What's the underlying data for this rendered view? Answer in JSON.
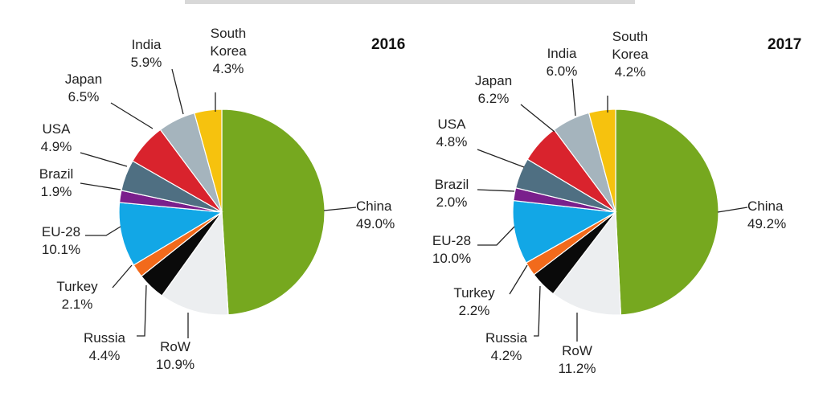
{
  "chart_data": [
    {
      "type": "pie",
      "title": "2016",
      "slices": [
        {
          "label": "China",
          "value": 49.0,
          "pct": "49.0%",
          "color": "#76a81f"
        },
        {
          "label": "RoW",
          "value": 10.9,
          "pct": "10.9%",
          "color": "#eceef0"
        },
        {
          "label": "Russia",
          "value": 4.4,
          "pct": "4.4%",
          "color": "#0a0a0a"
        },
        {
          "label": "Turkey",
          "value": 2.1,
          "pct": "2.1%",
          "color": "#f26a1b"
        },
        {
          "label": "EU-28",
          "value": 10.1,
          "pct": "10.1%",
          "color": "#12a7e6"
        },
        {
          "label": "Brazil",
          "value": 1.9,
          "pct": "1.9%",
          "color": "#7a1f8c"
        },
        {
          "label": "USA",
          "value": 4.9,
          "pct": "4.9%",
          "color": "#4f6f82"
        },
        {
          "label": "Japan",
          "value": 6.5,
          "pct": "6.5%",
          "color": "#d9232d"
        },
        {
          "label": "India",
          "value": 5.9,
          "pct": "5.9%",
          "color": "#a5b4bd"
        },
        {
          "label": "South Korea",
          "label_lines": [
            "South",
            "Korea"
          ],
          "value": 4.3,
          "pct": "4.3%",
          "color": "#f6c20e"
        }
      ]
    },
    {
      "type": "pie",
      "title": "2017",
      "slices": [
        {
          "label": "China",
          "value": 49.2,
          "pct": "49.2%",
          "color": "#76a81f"
        },
        {
          "label": "RoW",
          "value": 11.2,
          "pct": "11.2%",
          "color": "#eceef0"
        },
        {
          "label": "Russia",
          "value": 4.2,
          "pct": "4.2%",
          "color": "#0a0a0a"
        },
        {
          "label": "Turkey",
          "value": 2.2,
          "pct": "2.2%",
          "color": "#f26a1b"
        },
        {
          "label": "EU-28",
          "value": 10.0,
          "pct": "10.0%",
          "color": "#12a7e6"
        },
        {
          "label": "Brazil",
          "value": 2.0,
          "pct": "2.0%",
          "color": "#7a1f8c"
        },
        {
          "label": "USA",
          "value": 4.8,
          "pct": "4.8%",
          "color": "#4f6f82"
        },
        {
          "label": "Japan",
          "value": 6.2,
          "pct": "6.2%",
          "color": "#d9232d"
        },
        {
          "label": "India",
          "value": 6.0,
          "pct": "6.0%",
          "color": "#a5b4bd"
        },
        {
          "label": "South Korea",
          "label_lines": [
            "South",
            "Korea"
          ],
          "value": 4.2,
          "pct": "4.2%",
          "color": "#f6c20e"
        }
      ]
    }
  ]
}
